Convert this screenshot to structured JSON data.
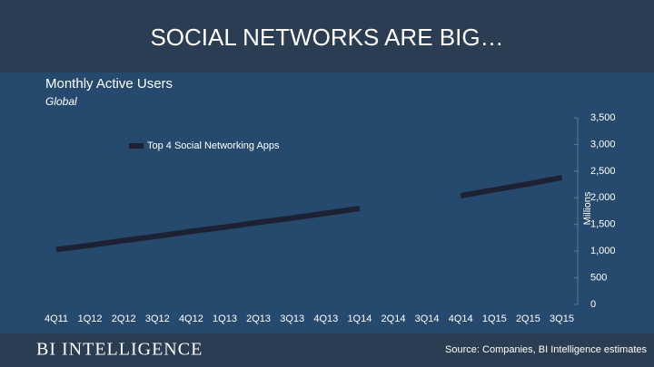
{
  "chart_data": {
    "type": "line",
    "title": "SOCIAL NETWORKS ARE BIG…",
    "subtitle": "Monthly Active Users",
    "region": "Global",
    "y_axis_label": "Millions",
    "brand": "BI INTELLIGENCE",
    "source": "Source: Companies, BI Intelligence estimates",
    "categories": [
      "4Q11",
      "1Q12",
      "2Q12",
      "3Q12",
      "4Q12",
      "1Q13",
      "2Q13",
      "3Q13",
      "4Q13",
      "1Q14",
      "2Q14",
      "3Q14",
      "4Q14",
      "1Q15",
      "2Q15",
      "3Q15"
    ],
    "series": [
      {
        "name": "Top 4 Social Networking Apps",
        "color": "#1c2233",
        "values": [
          1030,
          1110,
          1200,
          1280,
          1370,
          1450,
          1540,
          1620,
          1710,
          1800,
          null,
          null,
          2040,
          2150,
          2260,
          2380
        ]
      }
    ],
    "ylim": [
      0,
      3500
    ],
    "yticks": [
      0,
      500,
      {
        "value": 1000,
        "label": "1,000"
      },
      {
        "value": 1500,
        "label": "1,500"
      },
      {
        "value": 2000,
        "label": "2,000"
      },
      {
        "value": 2500,
        "label": "2,500"
      },
      {
        "value": 3000,
        "label": "3,000"
      },
      {
        "value": 3500,
        "label": "3,500"
      }
    ],
    "grid": false,
    "legend": "top-left"
  }
}
